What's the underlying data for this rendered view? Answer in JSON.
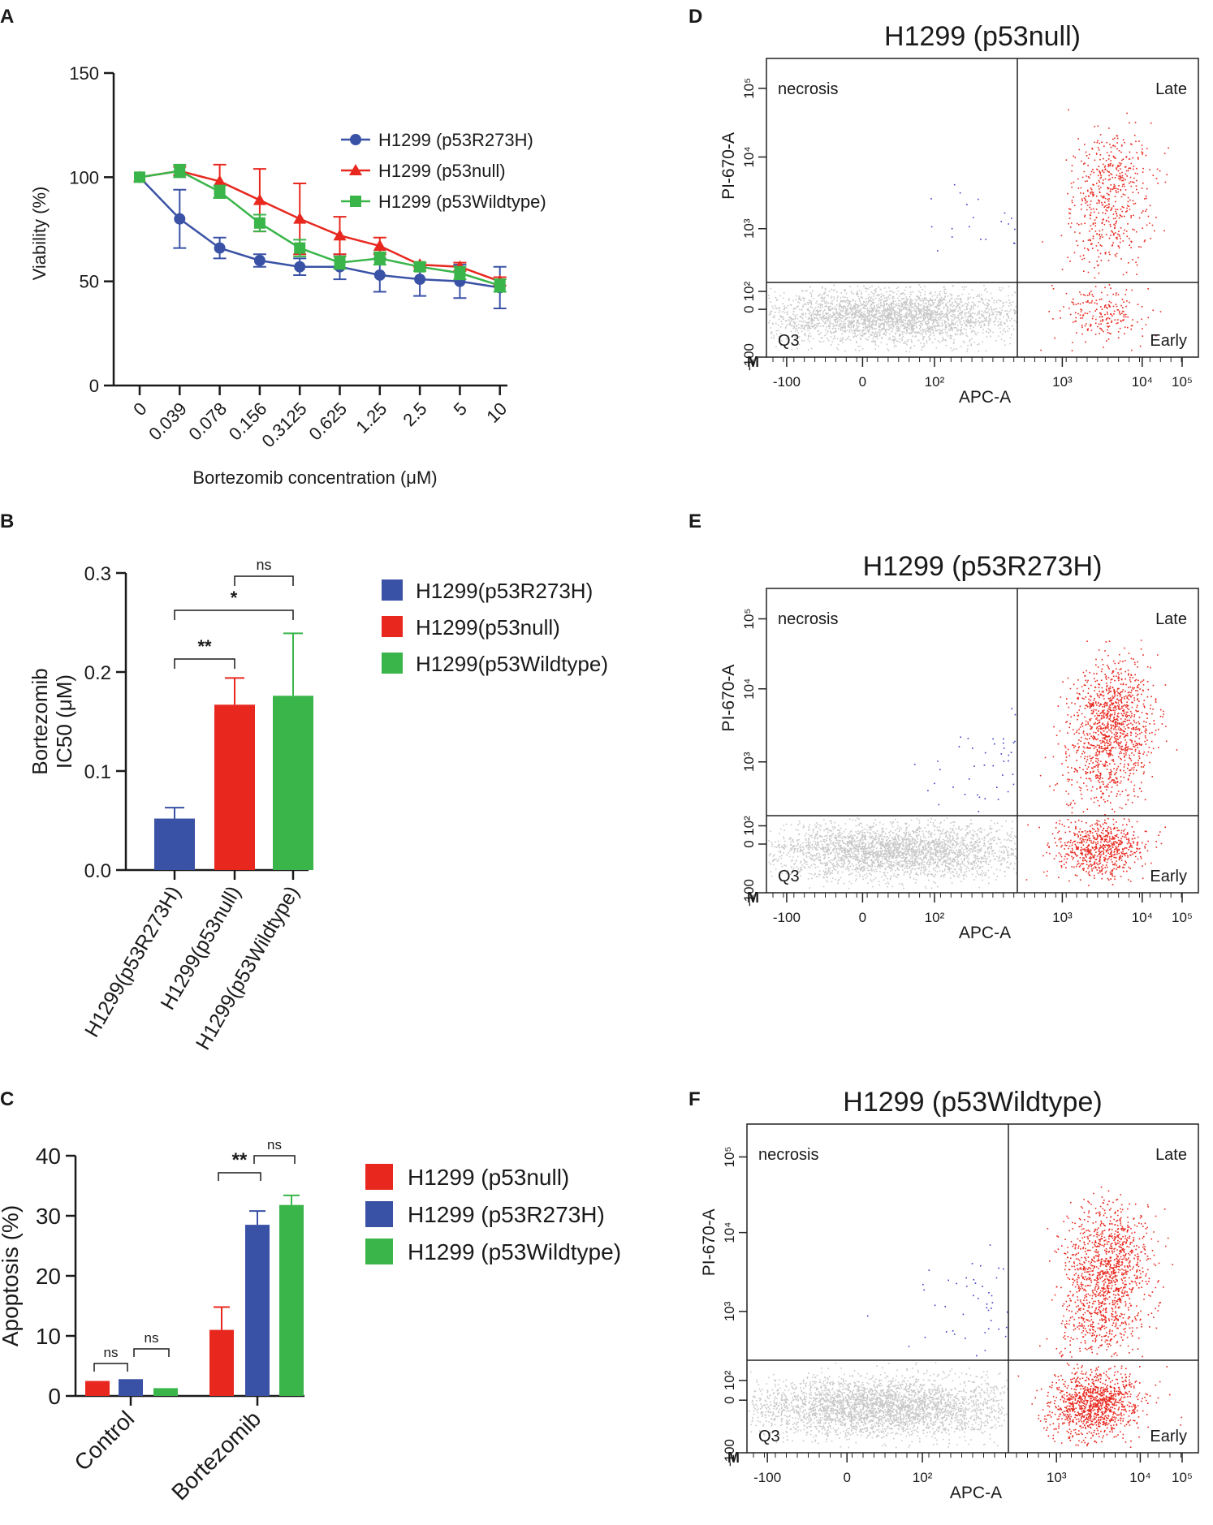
{
  "colors": {
    "red": "#e8281f",
    "blue": "#3a52a6",
    "green": "#3ab54a",
    "gray_dot": "#c8c8c8",
    "blue_dot": "#3c3cc8",
    "axis": "#1a1a1a"
  },
  "chart_data": [
    {
      "panel": "A",
      "type": "line",
      "xlabel": "Bortezomib concentration (μM)",
      "ylabel": "Viability (%)",
      "ylim": [
        0,
        150
      ],
      "yticks": [
        "0",
        "50",
        "100",
        "150"
      ],
      "categories": [
        "0",
        "0.039",
        "0.078",
        "0.156",
        "0.3125",
        "0.625",
        "1.25",
        "2.5",
        "5",
        "10"
      ],
      "series": [
        {
          "name": "H1299 (p53R273H)",
          "marker": "circle",
          "color_key": "blue",
          "values": [
            100,
            80,
            66,
            60,
            57,
            57,
            53,
            51,
            50,
            47
          ],
          "errors": [
            0,
            14,
            5,
            3,
            4,
            6,
            8,
            8,
            8,
            10
          ]
        },
        {
          "name": "H1299 (p53null)",
          "marker": "triangle",
          "color_key": "red",
          "values": [
            100,
            103,
            98,
            89,
            80,
            72,
            67,
            58,
            57,
            50
          ],
          "errors": [
            0,
            2,
            8,
            15,
            17,
            9,
            4,
            1,
            2,
            2
          ]
        },
        {
          "name": "H1299 (p53Wildtype)",
          "marker": "square",
          "color_key": "green",
          "values": [
            100,
            103,
            93,
            78,
            66,
            59,
            61,
            57,
            54,
            48
          ],
          "errors": [
            0,
            3,
            3,
            4,
            4,
            3,
            3,
            2,
            3,
            3
          ]
        }
      ]
    },
    {
      "panel": "B",
      "type": "bar",
      "ylabel_line1": "Bortezomib",
      "ylabel_line2": "IC50 (μM)",
      "ylim": [
        0,
        0.3
      ],
      "yticks": [
        "0.0",
        "0.1",
        "0.2",
        "0.3"
      ],
      "categories": [
        "H1299(p53R273H)",
        "H1299(p53null)",
        "H1299(p53Wildtype)"
      ],
      "values": [
        0.052,
        0.167,
        0.176
      ],
      "errors": [
        0.011,
        0.027,
        0.063
      ],
      "color_keys": [
        "blue",
        "red",
        "green"
      ],
      "legend": [
        "H1299(p53R273H)",
        "H1299(p53null)",
        "H1299(p53Wildtype)"
      ],
      "significance": [
        {
          "label": "ns",
          "from": 1,
          "to": 2
        },
        {
          "label": "*",
          "from": 0,
          "to": 2
        },
        {
          "label": "**",
          "from": 0,
          "to": 1
        }
      ]
    },
    {
      "panel": "C",
      "type": "bar",
      "ylabel": "Apoptosis (%)",
      "ylim": [
        0,
        40
      ],
      "yticks": [
        "0",
        "10",
        "20",
        "30",
        "40"
      ],
      "categories": [
        "Control",
        "Bortezomib"
      ],
      "series": [
        {
          "name": "H1299 (p53null)",
          "color_key": "red",
          "values": [
            2.5,
            11
          ],
          "errors": [
            0,
            3.8
          ]
        },
        {
          "name": "H1299 (p53R273H)",
          "color_key": "blue",
          "values": [
            2.8,
            28.5
          ],
          "errors": [
            0,
            2.3
          ]
        },
        {
          "name": "H1299 (p53Wildtype)",
          "color_key": "green",
          "values": [
            1.3,
            31.8
          ],
          "errors": [
            0,
            1.6
          ]
        }
      ],
      "significance": [
        {
          "label": "ns",
          "group": 0,
          "from": 0,
          "to": 1
        },
        {
          "label": "ns",
          "group": 0,
          "from": 1,
          "to": 2
        },
        {
          "label": "**",
          "group": 1,
          "from": 0,
          "to": 1
        },
        {
          "label": "ns",
          "group": 1,
          "from": 1,
          "to": 2
        }
      ]
    },
    {
      "panel": "D",
      "type": "scatter",
      "title": "H1299 (p53null)",
      "xlabel": "APC-A",
      "ylabel": "PI-670-A",
      "quadrants": {
        "top_left": "necrosis",
        "top_right": "Late",
        "bottom_left": "Q3",
        "bottom_right": "Early"
      },
      "x_ticks": [
        "-100",
        "0",
        "10²",
        "10³",
        "10⁴",
        "10⁵"
      ],
      "y_ticks": [
        "-100",
        "0",
        "10²",
        "10³",
        "10⁴",
        "10⁵"
      ],
      "density": {
        "gray": 2600,
        "late": 420,
        "early": 220,
        "necrosis": 40
      }
    },
    {
      "panel": "E",
      "type": "scatter",
      "title": "H1299 (p53R273H)",
      "xlabel": "APC-A",
      "ylabel": "PI-670-A",
      "quadrants": {
        "top_left": "necrosis",
        "top_right": "Late",
        "bottom_left": "Q3",
        "bottom_right": "Early"
      },
      "x_ticks": [
        "-100",
        "0",
        "10²",
        "10³",
        "10⁴",
        "10⁵"
      ],
      "y_ticks": [
        "-100",
        "0",
        "10²",
        "10³",
        "10⁴",
        "10⁵"
      ],
      "density": {
        "gray": 2600,
        "late": 900,
        "early": 700,
        "necrosis": 70
      }
    },
    {
      "panel": "F",
      "type": "scatter",
      "title": "H1299 (p53Wildtype)",
      "xlabel": "APC-A",
      "ylabel": "PI-670-A",
      "quadrants": {
        "top_left": "necrosis",
        "top_right": "Late",
        "bottom_left": "Q3",
        "bottom_right": "Early"
      },
      "x_ticks": [
        "-100",
        "0",
        "10²",
        "10³",
        "10⁴",
        "10⁵"
      ],
      "y_ticks": [
        "-100",
        "0",
        "10²",
        "10³",
        "10⁴",
        "10⁵"
      ],
      "density": {
        "gray": 3000,
        "late": 1000,
        "early": 1100,
        "necrosis": 80
      }
    }
  ],
  "panel_labels": [
    "A",
    "B",
    "C",
    "D",
    "E",
    "F"
  ],
  "flow_marker": "M"
}
